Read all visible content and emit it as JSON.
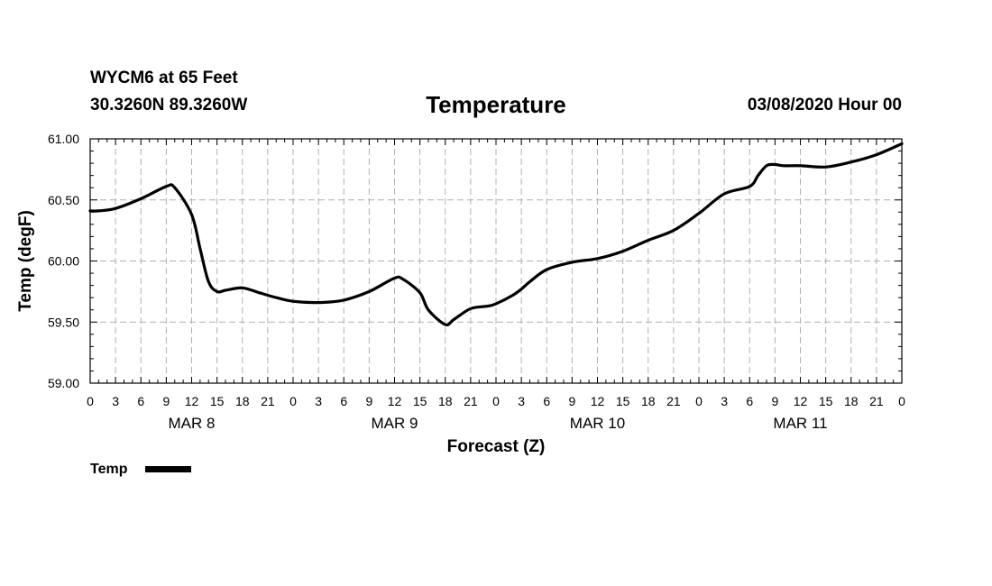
{
  "header": {
    "station": "WYCM6 at 65 Feet",
    "coords": "30.3260N 89.3260W",
    "title": "Temperature",
    "runtime": "03/08/2020 Hour 00"
  },
  "chart_data": {
    "type": "line",
    "title": "Temperature",
    "xlabel": "Forecast (Z)",
    "ylabel": "Temp (degF)",
    "xlim": [
      0,
      96
    ],
    "ylim": [
      59.0,
      61.0
    ],
    "y_ticks": [
      "59.00",
      "59.50",
      "60.00",
      "60.50",
      "61.00"
    ],
    "x_tick_labels": [
      "0",
      "3",
      "6",
      "9",
      "12",
      "15",
      "18",
      "21",
      "0",
      "3",
      "6",
      "9",
      "12",
      "15",
      "18",
      "21",
      "0",
      "3",
      "6",
      "9",
      "12",
      "15",
      "18",
      "21",
      "0",
      "3",
      "6",
      "9",
      "12",
      "15",
      "18",
      "21",
      "0"
    ],
    "date_labels": [
      {
        "label": "MAR 8",
        "hour": 12
      },
      {
        "label": "MAR 9",
        "hour": 36
      },
      {
        "label": "MAR 10",
        "hour": 60
      },
      {
        "label": "MAR 11",
        "hour": 84
      }
    ],
    "grid": true,
    "series": [
      {
        "name": "Temp",
        "color": "#000000",
        "x": [
          0,
          1,
          3,
          6,
          9,
          10,
          12,
          13,
          14,
          15,
          16,
          18,
          20,
          22,
          24,
          27,
          30,
          33,
          36,
          37,
          39,
          40,
          42,
          43,
          45,
          47,
          48,
          50,
          51,
          52,
          54,
          57,
          60,
          63,
          66,
          69,
          72,
          75,
          78,
          79,
          80,
          81,
          82,
          84,
          87,
          90,
          93,
          96
        ],
        "y": [
          60.41,
          60.41,
          60.43,
          60.51,
          60.61,
          60.6,
          60.38,
          60.1,
          59.83,
          59.75,
          59.76,
          59.78,
          59.74,
          59.7,
          59.67,
          59.66,
          59.68,
          59.75,
          59.86,
          59.85,
          59.74,
          59.6,
          59.48,
          59.52,
          59.61,
          59.63,
          59.65,
          59.72,
          59.77,
          59.83,
          59.93,
          59.99,
          60.02,
          60.08,
          60.17,
          60.25,
          60.39,
          60.55,
          60.61,
          60.7,
          60.78,
          60.79,
          60.78,
          60.78,
          60.77,
          60.81,
          60.87,
          60.96
        ]
      }
    ],
    "legend": {
      "label": "Temp",
      "position": "bottom-left"
    }
  }
}
